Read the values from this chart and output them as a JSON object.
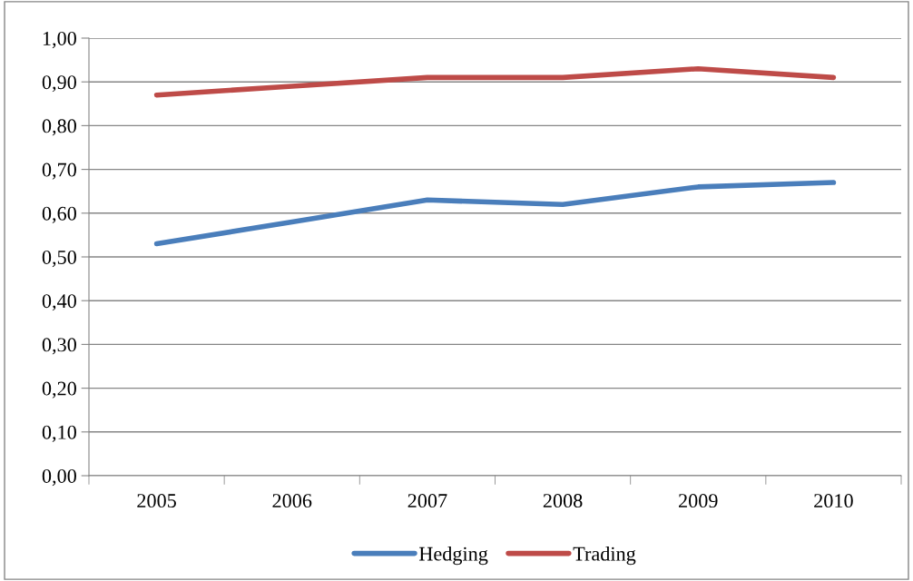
{
  "chart_data": {
    "type": "line",
    "categories": [
      "2005",
      "2006",
      "2007",
      "2008",
      "2009",
      "2010"
    ],
    "series": [
      {
        "name": "Hedging",
        "color": "#4a7ebb",
        "values": [
          0.53,
          0.58,
          0.63,
          0.62,
          0.66,
          0.67
        ]
      },
      {
        "name": "Trading",
        "color": "#be4b48",
        "values": [
          0.87,
          0.89,
          0.91,
          0.91,
          0.93,
          0.91
        ]
      }
    ],
    "ylim": [
      0,
      1
    ],
    "yticks": [
      {
        "value": 0,
        "label": "0,00"
      },
      {
        "value": 0.1,
        "label": "0,10"
      },
      {
        "value": 0.2,
        "label": "0,20"
      },
      {
        "value": 0.3,
        "label": "0,30"
      },
      {
        "value": 0.4,
        "label": "0,40"
      },
      {
        "value": 0.5,
        "label": "0,50"
      },
      {
        "value": 0.6,
        "label": "0,60"
      },
      {
        "value": 0.7,
        "label": "0,70"
      },
      {
        "value": 0.8,
        "label": "0,80"
      },
      {
        "value": 0.9,
        "label": "0,90"
      },
      {
        "value": 1,
        "label": "1,00"
      }
    ],
    "grid": "y",
    "legend": "bottom",
    "marker": "none",
    "line_style": "solid"
  }
}
